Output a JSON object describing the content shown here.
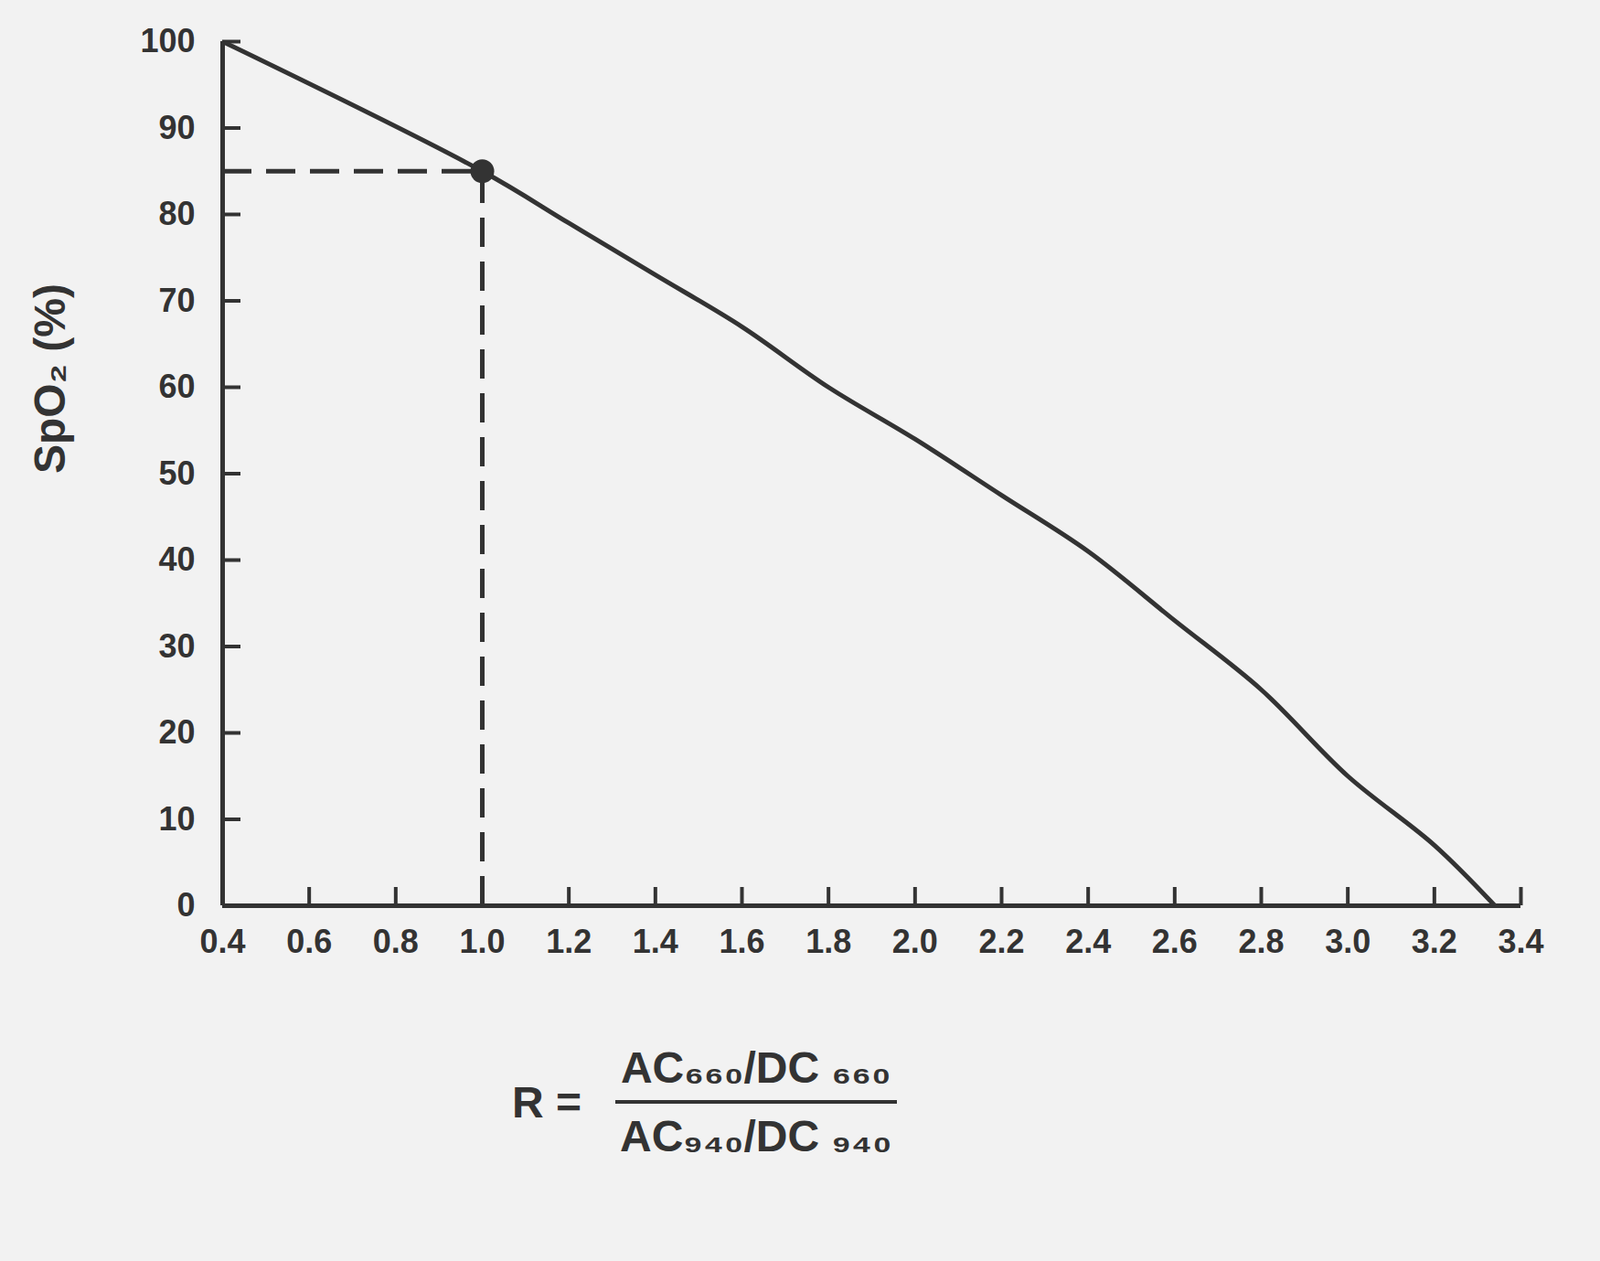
{
  "chart_data": {
    "type": "line",
    "y_label": "SpO₂ (%)",
    "x_label": {
      "lhs": "R =",
      "numerator": "AC₆₆₀/DC ₆₆₀",
      "denominator": "AC₉₄₀/DC ₉₄₀"
    },
    "x": [
      0.4,
      1.0,
      1.2,
      1.4,
      1.6,
      1.8,
      2.0,
      2.2,
      2.4,
      2.6,
      2.8,
      3.0,
      3.2,
      3.34
    ],
    "values": [
      100,
      85,
      79,
      73,
      67,
      60,
      54,
      47.5,
      41,
      33,
      25,
      15,
      7,
      0
    ],
    "color": "#333333",
    "highlight": {
      "x": 1.0,
      "y": 85
    },
    "xlim": [
      0.4,
      3.4
    ],
    "xticks": [
      0.4,
      0.6,
      0.8,
      {
        "value": 1,
        "label": "1.0"
      },
      1.2,
      1.4,
      1.6,
      1.8,
      {
        "value": 2,
        "label": "2.0"
      },
      2.2,
      2.4,
      2.6,
      2.8,
      {
        "value": 3,
        "label": "3.0"
      },
      3.2,
      3.4
    ],
    "ylim": [
      0,
      100
    ],
    "yticks": [
      0,
      10,
      20,
      30,
      40,
      50,
      60,
      70,
      80,
      90,
      100
    ],
    "grid": false
  }
}
